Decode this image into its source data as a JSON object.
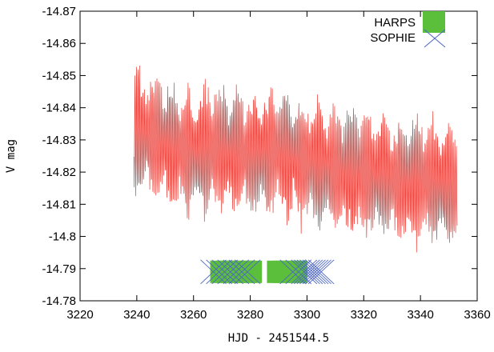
{
  "chart_data": {
    "type": "line",
    "xlabel": "HJD - 2451544.5",
    "ylabel": "V mag",
    "xlim": [
      3220,
      3360
    ],
    "ylim": [
      -14.87,
      -14.78
    ],
    "y_inverted": true,
    "grid": false,
    "legend_position": "top-right",
    "x_ticks": [
      "3220",
      "3240",
      "3260",
      "3280",
      "3300",
      "3320",
      "3340",
      "3360"
    ],
    "y_ticks": [
      "-14.87",
      "-14.86",
      "-14.85",
      "-14.84",
      "-14.83",
      "-14.82",
      "-14.81",
      "-14.8",
      "-14.79",
      "-14.78"
    ],
    "series": [
      {
        "kind": "light-curve",
        "color": "#e8231c",
        "x_range": [
          3239,
          3353
        ],
        "mean_trend": [
          {
            "x": 3239,
            "y": -14.832
          },
          {
            "x": 3250,
            "y": -14.83
          },
          {
            "x": 3260,
            "y": -14.826
          },
          {
            "x": 3270,
            "y": -14.828
          },
          {
            "x": 3280,
            "y": -14.825
          },
          {
            "x": 3290,
            "y": -14.827
          },
          {
            "x": 3300,
            "y": -14.823
          },
          {
            "x": 3310,
            "y": -14.821
          },
          {
            "x": 3320,
            "y": -14.82
          },
          {
            "x": 3330,
            "y": -14.818
          },
          {
            "x": 3340,
            "y": -14.818
          },
          {
            "x": 3353,
            "y": -14.815
          }
        ],
        "half_amplitude": 0.018,
        "oscillation_period_days": 0.55
      },
      {
        "name": "HARPS",
        "marker": "filled-square",
        "color": "#5cbf3c",
        "y": -14.789,
        "x": [
          3268,
          3270,
          3272,
          3274,
          3276,
          3278,
          3280,
          3282,
          3288,
          3290,
          3292,
          3294,
          3296,
          3298
        ]
      },
      {
        "name": "SOPHIE",
        "marker": "x-cross",
        "color": "#4a64c8",
        "y": -14.789,
        "x": [
          3267,
          3269,
          3271,
          3273,
          3275,
          3277,
          3279,
          3295,
          3297,
          3299,
          3300,
          3301,
          3302,
          3303,
          3304,
          3305
        ]
      }
    ]
  }
}
